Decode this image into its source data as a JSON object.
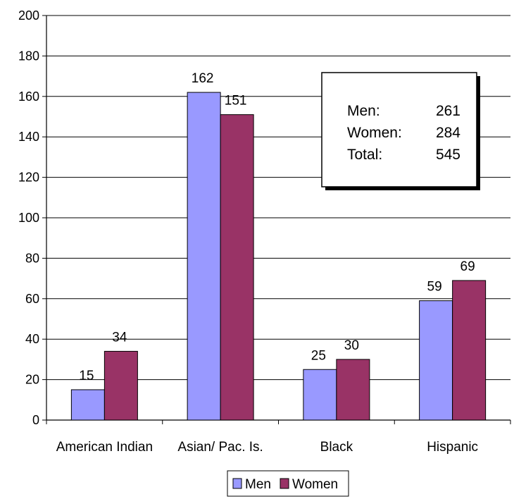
{
  "chart_data": {
    "type": "bar",
    "categories": [
      "American Indian",
      "Asian/ Pac. Is.",
      "Black",
      "Hispanic"
    ],
    "series": [
      {
        "name": "Men",
        "values": [
          15,
          162,
          25,
          59
        ],
        "color": "#9999ff"
      },
      {
        "name": "Women",
        "values": [
          34,
          151,
          30,
          69
        ],
        "color": "#993366"
      }
    ],
    "yticks": [
      "0",
      "20",
      "40",
      "60",
      "80",
      "100",
      "120",
      "140",
      "160",
      "180",
      "200"
    ],
    "ylim": [
      0,
      200
    ],
    "grid": true,
    "legend": "bottom",
    "title": "",
    "xlabel": "",
    "ylabel": ""
  },
  "info_box": {
    "rows": [
      {
        "label": "Men:",
        "value": "261"
      },
      {
        "label": "Women:",
        "value": "284"
      },
      {
        "label": "Total:",
        "value": "545"
      }
    ]
  }
}
